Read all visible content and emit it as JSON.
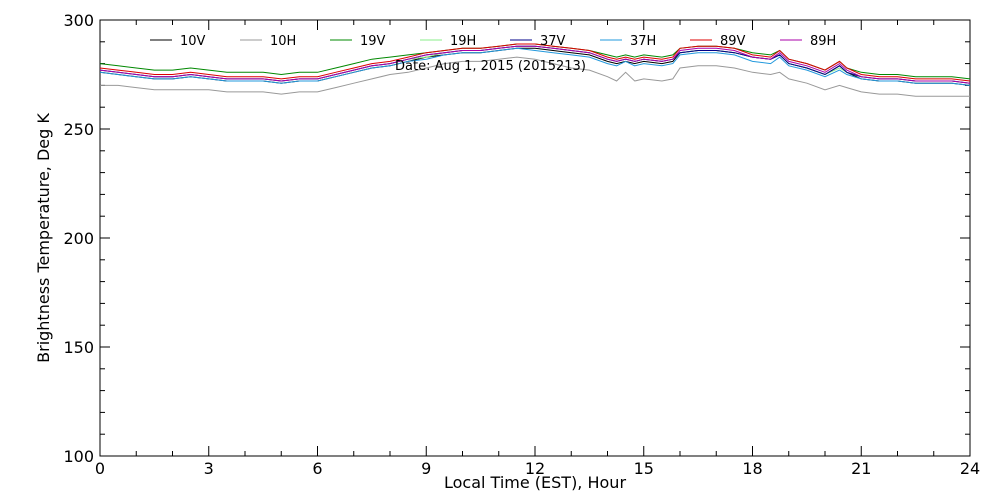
{
  "chart_data": {
    "type": "line",
    "date_text": "Date: Aug  1, 2015 (2015213)",
    "xlabel": "Local Time (EST), Hour",
    "ylabel": "Brightness Temperature, Deg  K",
    "xlim": [
      0,
      24
    ],
    "ylim": [
      100,
      300
    ],
    "xticks": [
      0,
      3,
      6,
      9,
      12,
      15,
      18,
      21,
      24
    ],
    "yticks": [
      100,
      150,
      200,
      250,
      300
    ],
    "x": [
      0,
      0.5,
      1,
      1.5,
      2,
      2.5,
      3,
      3.5,
      4,
      4.5,
      5,
      5.5,
      6,
      6.5,
      7,
      7.5,
      8,
      8.5,
      9,
      9.5,
      10,
      10.5,
      11,
      11.5,
      12,
      12.5,
      13,
      13.5,
      14,
      14.25,
      14.5,
      14.75,
      15,
      15.5,
      15.8,
      16,
      16.5,
      17,
      17.5,
      18,
      18.5,
      18.75,
      19,
      19.5,
      20,
      20.4,
      20.6,
      21,
      21.5,
      22,
      22.5,
      23,
      23.5,
      24
    ],
    "series": [
      {
        "name": "10V",
        "color": "#000000",
        "values": [
          276,
          275,
          274,
          273,
          273,
          274,
          273,
          272,
          272,
          272,
          271,
          272,
          272,
          274,
          276,
          278,
          279,
          281,
          283,
          284,
          285,
          285,
          286,
          287,
          287,
          286,
          285,
          284,
          281,
          280,
          281,
          280,
          281,
          280,
          281,
          285,
          286,
          286,
          285,
          283,
          282,
          284,
          280,
          278,
          275,
          279,
          276,
          273,
          272,
          272,
          271,
          271,
          271,
          270
        ]
      },
      {
        "name": "10H",
        "color": "#999999",
        "values": [
          270,
          270,
          269,
          268,
          268,
          268,
          268,
          267,
          267,
          267,
          266,
          267,
          267,
          269,
          271,
          273,
          275,
          276,
          278,
          280,
          281,
          281,
          282,
          283,
          282,
          280,
          278,
          277,
          274,
          272,
          276,
          272,
          273,
          272,
          273,
          278,
          279,
          279,
          278,
          276,
          275,
          276,
          273,
          271,
          268,
          270,
          269,
          267,
          266,
          266,
          265,
          265,
          265,
          265
        ]
      },
      {
        "name": "19V",
        "color": "#008800",
        "values": [
          280,
          279,
          278,
          277,
          277,
          278,
          277,
          276,
          276,
          276,
          275,
          276,
          276,
          278,
          280,
          282,
          283,
          284,
          285,
          286,
          287,
          287,
          288,
          289,
          289,
          288,
          287,
          286,
          284,
          283,
          284,
          283,
          284,
          283,
          284,
          287,
          288,
          288,
          287,
          285,
          284,
          286,
          282,
          280,
          277,
          281,
          278,
          276,
          275,
          275,
          274,
          274,
          274,
          273
        ]
      },
      {
        "name": "19H",
        "color": "#88ee88",
        "values": [
          277,
          276,
          275,
          274,
          274,
          275,
          274,
          273,
          273,
          273,
          272,
          273,
          273,
          275,
          277,
          279,
          280,
          282,
          283,
          285,
          286,
          286,
          287,
          288,
          288,
          287,
          286,
          285,
          282,
          281,
          282,
          281,
          282,
          281,
          282,
          285,
          286,
          286,
          285,
          283,
          282,
          284,
          280,
          278,
          275,
          278,
          276,
          274,
          273,
          273,
          272,
          272,
          272,
          271
        ]
      },
      {
        "name": "37V",
        "color": "#000088",
        "values": [
          277,
          276,
          275,
          274,
          274,
          275,
          274,
          273,
          273,
          273,
          272,
          273,
          273,
          275,
          277,
          279,
          280,
          282,
          284,
          285,
          286,
          286,
          287,
          288,
          288,
          287,
          286,
          285,
          282,
          281,
          282,
          281,
          282,
          281,
          282,
          285,
          286,
          286,
          285,
          283,
          282,
          284,
          280,
          278,
          275,
          279,
          276,
          274,
          273,
          273,
          272,
          272,
          272,
          271
        ]
      },
      {
        "name": "37H",
        "color": "#2299dd",
        "values": [
          276,
          275,
          274,
          273,
          273,
          274,
          273,
          272,
          272,
          272,
          271,
          272,
          272,
          274,
          276,
          278,
          279,
          281,
          282,
          284,
          285,
          285,
          286,
          287,
          286,
          285,
          284,
          283,
          280,
          279,
          281,
          279,
          280,
          279,
          280,
          284,
          285,
          285,
          284,
          281,
          280,
          283,
          279,
          277,
          274,
          277,
          275,
          273,
          272,
          272,
          271,
          271,
          271,
          270
        ]
      },
      {
        "name": "89V",
        "color": "#dd0000",
        "values": [
          278,
          277,
          276,
          275,
          275,
          276,
          275,
          274,
          274,
          274,
          273,
          274,
          274,
          276,
          278,
          280,
          281,
          283,
          285,
          286,
          287,
          287,
          288,
          289,
          289,
          288,
          287,
          286,
          283,
          282,
          283,
          282,
          283,
          282,
          283,
          287,
          288,
          288,
          287,
          284,
          283,
          286,
          282,
          280,
          277,
          281,
          278,
          275,
          274,
          274,
          273,
          273,
          273,
          272
        ]
      },
      {
        "name": "89H",
        "color": "#aa00aa",
        "values": [
          277,
          276,
          275,
          274,
          274,
          275,
          274,
          273,
          273,
          273,
          272,
          273,
          273,
          275,
          277,
          279,
          280,
          282,
          284,
          285,
          286,
          286,
          287,
          288,
          288,
          287,
          286,
          285,
          282,
          281,
          282,
          281,
          282,
          281,
          282,
          286,
          287,
          287,
          286,
          283,
          282,
          285,
          281,
          279,
          276,
          280,
          277,
          274,
          273,
          273,
          272,
          272,
          272,
          271
        ]
      }
    ]
  }
}
